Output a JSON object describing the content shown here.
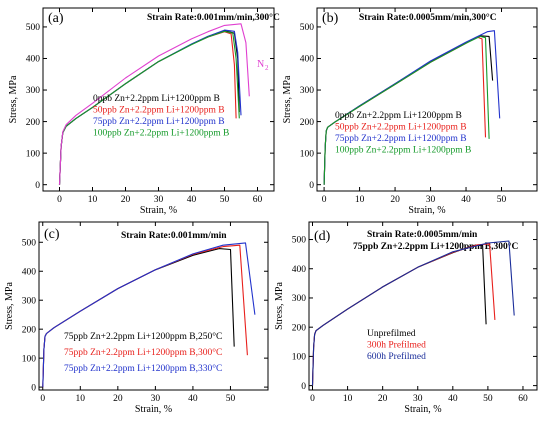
{
  "figure": {
    "colors": {
      "black": "#000000",
      "red": "#e8201c",
      "blue": "#2233cc",
      "green": "#159a2a",
      "magenta": "#e040d0",
      "darkblue": "#1a2d9a"
    }
  },
  "chart_data": [
    {
      "type": "line",
      "panel": "(a)",
      "title": "Strain Rate:0.001mm/min,300°C",
      "xlabel": "Strain, %",
      "ylabel": "Stress, MPa",
      "xlim": [
        -5,
        65
      ],
      "ylim": [
        -20,
        560
      ],
      "xticks": [
        "0",
        "10",
        "20",
        "30",
        "40",
        "50",
        "60"
      ],
      "yticks": [
        "0",
        "100",
        "200",
        "300",
        "400",
        "500"
      ],
      "annotation": "N",
      "annotation_sub": "2",
      "legend_position": "center",
      "series": [
        {
          "name": "0ppb Zn+2.2ppm Li+1200ppm B",
          "color": "#000000",
          "x": [
            0,
            0.5,
            1,
            2,
            5,
            10,
            20,
            30,
            40,
            45,
            50,
            53,
            54,
            54.5
          ],
          "y": [
            0,
            120,
            165,
            185,
            210,
            245,
            320,
            390,
            445,
            470,
            488,
            480,
            400,
            230
          ]
        },
        {
          "name": "50ppb Zn+2.2ppm Li+1200ppm B",
          "color": "#e8201c",
          "x": [
            0,
            0.5,
            1,
            2,
            5,
            10,
            20,
            30,
            40,
            45,
            50,
            52,
            53,
            53.5
          ],
          "y": [
            0,
            120,
            165,
            185,
            210,
            245,
            320,
            390,
            445,
            468,
            485,
            478,
            380,
            210
          ]
        },
        {
          "name": "75ppb Zn+2.2ppm Li+1200ppm B",
          "color": "#2233cc",
          "x": [
            0,
            0.5,
            1,
            2,
            5,
            10,
            20,
            30,
            40,
            45,
            50,
            53,
            54,
            55
          ],
          "y": [
            0,
            120,
            165,
            185,
            210,
            245,
            320,
            390,
            446,
            470,
            490,
            486,
            420,
            220
          ]
        },
        {
          "name": "100ppb Zn+2.2ppm Li+1200ppm B",
          "color": "#159a2a",
          "x": [
            0,
            0.5,
            1,
            2,
            5,
            10,
            20,
            30,
            40,
            45,
            50,
            52.5,
            53.5,
            54.5
          ],
          "y": [
            0,
            120,
            165,
            185,
            210,
            245,
            320,
            390,
            444,
            468,
            486,
            480,
            400,
            210
          ]
        },
        {
          "color": "#e040d0",
          "x": [
            0,
            0.5,
            1,
            2,
            5,
            10,
            20,
            30,
            40,
            45,
            50,
            55,
            56.5,
            57.5
          ],
          "y": [
            0,
            120,
            168,
            190,
            220,
            258,
            338,
            408,
            462,
            485,
            505,
            510,
            450,
            280
          ]
        }
      ]
    },
    {
      "type": "line",
      "panel": "(b)",
      "title": "Strain Rate:0.0005mm/min,300°C",
      "xlabel": "Strain, %",
      "ylabel": "Stress, MPa",
      "xlim": [
        -2,
        60
      ],
      "ylim": [
        -20,
        560
      ],
      "xticks": [
        "0",
        "10",
        "20",
        "30",
        "40",
        "50"
      ],
      "yticks": [
        "0",
        "100",
        "200",
        "300",
        "400",
        "500"
      ],
      "legend_position": "center",
      "series": [
        {
          "name": "0ppb Zn+2.2ppm Li+1200ppm B",
          "color": "#000000",
          "x": [
            0,
            0.3,
            0.6,
            1,
            3,
            10,
            20,
            30,
            40,
            44,
            46.5,
            47.5
          ],
          "y": [
            0,
            120,
            170,
            182,
            198,
            250,
            320,
            390,
            450,
            472,
            470,
            330
          ]
        },
        {
          "name": "50ppb Zn+2.2ppm Li+1200ppm B",
          "color": "#e8201c",
          "x": [
            0,
            0.3,
            0.6,
            1,
            3,
            10,
            20,
            30,
            40,
            43,
            44.5,
            45.5
          ],
          "y": [
            0,
            120,
            170,
            182,
            198,
            248,
            318,
            388,
            448,
            468,
            462,
            150
          ]
        },
        {
          "name": "75ppb Zn+2.2ppm Li+1200ppm B",
          "color": "#2233cc",
          "x": [
            0,
            0.3,
            0.6,
            1,
            3,
            10,
            20,
            30,
            40,
            46,
            48,
            49.5
          ],
          "y": [
            0,
            120,
            170,
            182,
            198,
            250,
            320,
            392,
            452,
            485,
            488,
            210
          ]
        },
        {
          "name": "100ppb Zn+2.2ppm Li+1200ppm B",
          "color": "#159a2a",
          "x": [
            0,
            0.3,
            0.6,
            1,
            3,
            10,
            20,
            30,
            40,
            44,
            45.5,
            46.5
          ],
          "y": [
            0,
            120,
            170,
            182,
            198,
            248,
            318,
            388,
            448,
            470,
            466,
            145
          ]
        }
      ]
    },
    {
      "type": "line",
      "panel": "(c)",
      "title": "Strain Rate:0.001mm/min",
      "xlabel": "Strain, %",
      "ylabel": "Stress, MPa",
      "xlim": [
        -1,
        60
      ],
      "ylim": [
        -10,
        570
      ],
      "xticks": [
        "0",
        "10",
        "20",
        "30",
        "40",
        "50"
      ],
      "yticks": [
        "0",
        "100",
        "200",
        "300",
        "400",
        "500"
      ],
      "legend_position": "bottom-center",
      "series": [
        {
          "name": "75ppb Zn+2.2ppm Li+1200ppm B,250°C",
          "color": "#000000",
          "x": [
            0,
            0.3,
            0.6,
            1,
            3,
            10,
            20,
            30,
            40,
            47,
            50,
            51
          ],
          "y": [
            0,
            130,
            175,
            185,
            205,
            262,
            340,
            405,
            455,
            478,
            475,
            140
          ]
        },
        {
          "name": "75ppb Zn+2.2ppm Li+1200ppm B,300°C",
          "color": "#e8201c",
          "x": [
            0,
            0.3,
            0.6,
            1,
            3,
            10,
            20,
            30,
            40,
            48,
            52.5,
            54.5
          ],
          "y": [
            0,
            130,
            175,
            185,
            205,
            262,
            340,
            405,
            458,
            485,
            490,
            110
          ]
        },
        {
          "name": "75ppb Zn+2.2ppm Li+1200ppm B,330°C",
          "color": "#2233cc",
          "x": [
            0,
            0.3,
            0.6,
            1,
            3,
            10,
            20,
            30,
            40,
            48,
            54,
            56.5
          ],
          "y": [
            0,
            130,
            175,
            185,
            205,
            262,
            340,
            405,
            460,
            490,
            498,
            250
          ]
        }
      ]
    },
    {
      "type": "line",
      "panel": "(d)",
      "title": "Strain Rate:0.0005mm/min",
      "subtitle": "75ppb Zn+2.2ppm Li+1200ppm B,300°C",
      "xlabel": "Strain, %",
      "ylabel": "Stress, MPa",
      "xlim": [
        -1,
        64
      ],
      "ylim": [
        -15,
        560
      ],
      "xticks": [
        "0",
        "10",
        "20",
        "30",
        "40",
        "50",
        "60"
      ],
      "yticks": [
        "0",
        "100",
        "200",
        "300",
        "400",
        "500"
      ],
      "legend_position": "bottom-center",
      "series": [
        {
          "name": "Unprefilmed",
          "color": "#000000",
          "x": [
            0,
            0.3,
            0.6,
            1,
            3,
            10,
            20,
            30,
            40,
            46,
            48.5,
            49.5
          ],
          "y": [
            0,
            130,
            175,
            188,
            206,
            262,
            338,
            405,
            455,
            480,
            480,
            210
          ]
        },
        {
          "name": "300h Prefilmed",
          "color": "#e8201c",
          "x": [
            0,
            0.3,
            0.6,
            1,
            3,
            10,
            20,
            30,
            40,
            47,
            50.5,
            52
          ],
          "y": [
            0,
            130,
            175,
            188,
            206,
            262,
            338,
            405,
            456,
            482,
            485,
            225
          ]
        },
        {
          "name": "600h Prefilmed",
          "color": "#1a2d9a",
          "x": [
            0,
            0.3,
            0.6,
            1,
            3,
            10,
            20,
            30,
            40,
            50,
            56,
            57.5
          ],
          "y": [
            0,
            130,
            175,
            188,
            206,
            262,
            338,
            405,
            458,
            488,
            495,
            240
          ]
        }
      ]
    }
  ]
}
